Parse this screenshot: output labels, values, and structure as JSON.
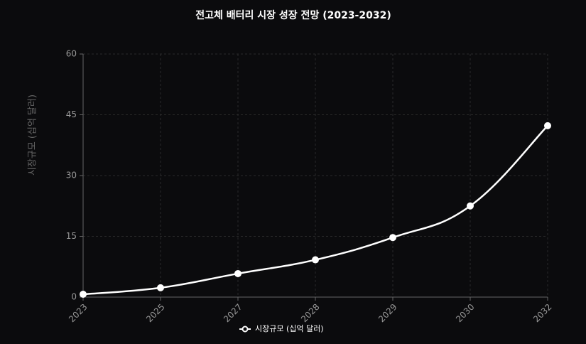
{
  "chart_data": {
    "type": "line",
    "title": "전고체 배터리 시장 성장 전망 (2023-2032)",
    "y_label": "시장규모 (십억 달러)",
    "categories": [
      "2023",
      "2025",
      "2027",
      "2028",
      "2029",
      "2030",
      "2032"
    ],
    "series": [
      {
        "name": "시장규모 (십억 달러)",
        "color": "#ffffff",
        "values": [
          0.7,
          2.3,
          5.8,
          9.2,
          14.7,
          22.5,
          42.3
        ]
      }
    ],
    "ylim": [
      0,
      60
    ],
    "yticks": [
      0,
      15,
      30,
      45,
      60
    ],
    "grid": true
  }
}
